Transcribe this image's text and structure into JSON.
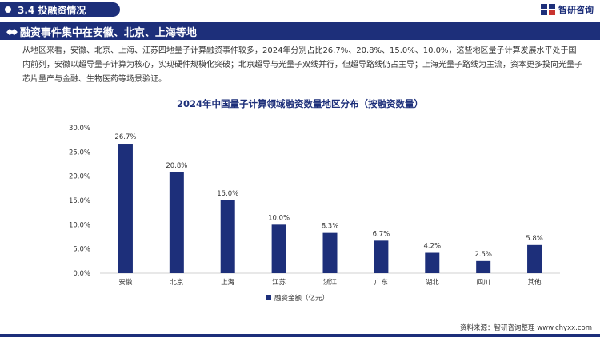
{
  "header": {
    "section": "3.4 投融资情况",
    "logo": "智研咨询"
  },
  "headline": "融资事件集中在安徽、北京、上海等地",
  "paragraph": "从地区来看，安徽、北京、上海、江苏四地量子计算融资事件较多，2024年分别占比26.7%、20.8%、15.0%、10.0%，这些地区量子计算发展水平处于国内前列，安徽以超导量子计算为核心，实现硬件规模化突破；北京超导与光量子双线并行，但超导路线仍占主导；上海光量子路线为主流，资本更多投向光量子芯片量产与金融、生物医药等场景验证。",
  "footer": "资料来源：智研咨询整理   www.chyxx.com",
  "colors": {
    "brand": "#1d2f7a",
    "bar": "#1d2f7a"
  },
  "chart_data": {
    "type": "bar",
    "title": "2024年中国量子计算领域融资数量地区分布（按融资数量）",
    "categories": [
      "安徽",
      "北京",
      "上海",
      "江苏",
      "浙江",
      "广东",
      "湖北",
      "四川",
      "其他"
    ],
    "series": [
      {
        "name": "融资金额（亿元）",
        "values": [
          26.7,
          20.8,
          15.0,
          10.0,
          8.3,
          6.7,
          4.2,
          2.5,
          5.8
        ]
      }
    ],
    "data_labels": [
      "26.7%",
      "20.8%",
      "15.0%",
      "10.0%",
      "8.3%",
      "6.7%",
      "4.2%",
      "2.5%",
      "5.8%"
    ],
    "y_ticks": [
      "0.0%",
      "5.0%",
      "10.0%",
      "15.0%",
      "20.0%",
      "25.0%",
      "30.0%"
    ],
    "ylim": [
      0,
      30
    ],
    "grid": false,
    "legend": "bottom-center"
  }
}
